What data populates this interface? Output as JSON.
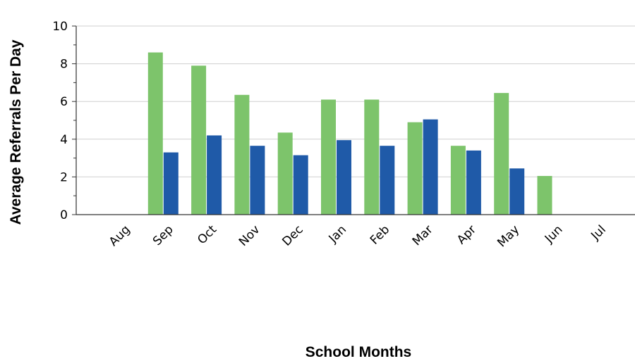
{
  "chart_data": {
    "type": "bar",
    "title": "",
    "xlabel": "School Months",
    "ylabel": "Average Referrals Per Day",
    "categories": [
      "Aug",
      "Sep",
      "Oct",
      "Nov",
      "Dec",
      "Jan",
      "Feb",
      "Mar",
      "Apr",
      "May",
      "Jun",
      "Jul"
    ],
    "ylim": [
      0,
      10
    ],
    "yticks": [
      "0",
      "2",
      "4",
      "6",
      "8",
      "10"
    ],
    "grid": true,
    "legend": "none",
    "series": [
      {
        "color": "#7dc46b",
        "values": [
          null,
          8.6,
          7.9,
          6.35,
          4.35,
          6.1,
          6.1,
          4.9,
          3.65,
          6.45,
          2.05,
          null
        ]
      },
      {
        "color": "#1f5aa8",
        "values": [
          null,
          3.3,
          4.2,
          3.65,
          3.15,
          3.95,
          3.65,
          5.05,
          3.4,
          2.45,
          null,
          null
        ]
      }
    ]
  }
}
